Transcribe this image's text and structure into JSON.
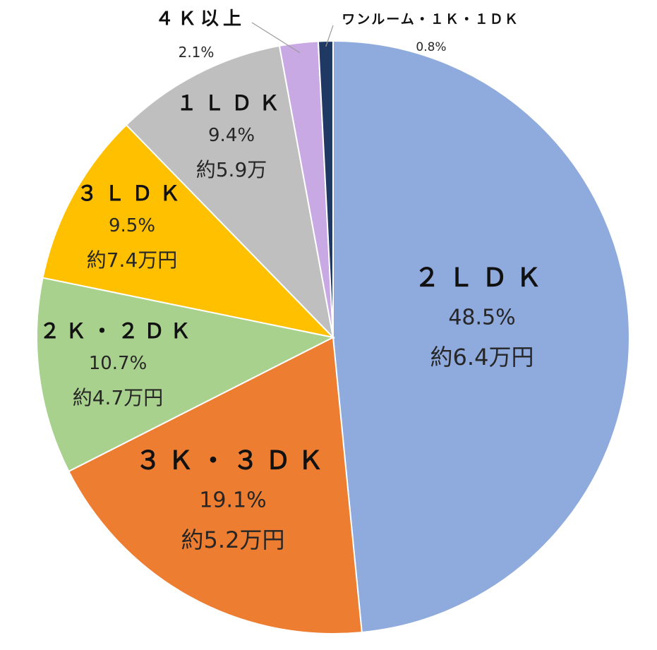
{
  "chart_data": {
    "type": "pie",
    "title": "",
    "slices": [
      {
        "name": "２ＬＤＫ",
        "percent_label": "48.5%",
        "value": 48.5,
        "rent_label": "約6.4万円",
        "color": "#8FAADC"
      },
      {
        "name": "３Ｋ・３ＤＫ",
        "percent_label": "19.1%",
        "value": 19.1,
        "rent_label": "約5.2万円",
        "color": "#ED7D31"
      },
      {
        "name": "２Ｋ・２ＤＫ",
        "percent_label": "10.7%",
        "value": 10.7,
        "rent_label": "約4.7万円",
        "color": "#A9D18E"
      },
      {
        "name": "３ＬＤＫ",
        "percent_label": "9.5%",
        "value": 9.5,
        "rent_label": "約7.4万円",
        "color": "#FFC000"
      },
      {
        "name": "１ＬＤＫ",
        "percent_label": "9.4%",
        "value": 9.4,
        "rent_label": "約5.9万",
        "color": "#BFBFBF"
      },
      {
        "name": "４Ｋ以上",
        "percent_label": "2.1%",
        "value": 2.1,
        "rent_label": "",
        "color": "#C9A9E3"
      },
      {
        "name": "ワンルーム・１Ｋ・１ＤＫ",
        "percent_label": "0.8%",
        "value": 0.8,
        "rent_label": "",
        "color": "#203864"
      }
    ],
    "start_angle_deg": 0,
    "direction": "clockwise",
    "legend": "none",
    "slice_border_color": "#FFFFFF"
  }
}
